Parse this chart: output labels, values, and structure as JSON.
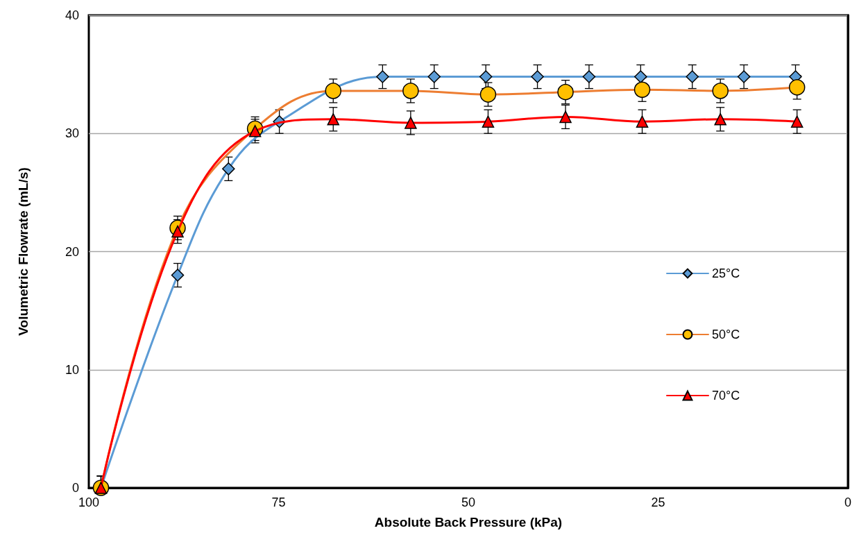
{
  "chart_data": {
    "type": "line",
    "xlabel": "Absolute Back Pressure (kPa)",
    "ylabel": "Volumetric Flowrate (mL/s)",
    "xlim": [
      100,
      0
    ],
    "xticks": [
      100,
      75,
      50,
      25,
      0
    ],
    "ylim": [
      0,
      40
    ],
    "yticks": [
      0,
      10,
      20,
      30,
      40
    ],
    "grid": "y",
    "legend": "right",
    "line_style": "solid",
    "series": [
      {
        "name": "25°C",
        "color": "#5b9bd5",
        "marker": "diamond",
        "x": [
          98.4,
          88.3,
          81.6,
          74.9,
          61.3,
          54.5,
          47.7,
          40.9,
          34.1,
          27.3,
          20.5,
          13.7,
          6.9
        ],
        "values": [
          0,
          18,
          27,
          31,
          34.8,
          34.8,
          34.8,
          34.8,
          34.8,
          34.8,
          34.8,
          34.8,
          34.8
        ],
        "errors": [
          [
            0,
            1
          ],
          1,
          1,
          1,
          1,
          1,
          1,
          1,
          1,
          1,
          1,
          1,
          1
        ]
      },
      {
        "name": "50°C",
        "color": "#ed7d31",
        "marker": "circle",
        "x": [
          98.4,
          88.3,
          78.1,
          67.8,
          57.6,
          47.4,
          37.2,
          27.1,
          16.8,
          6.7
        ],
        "values": [
          0,
          22,
          30.4,
          33.6,
          33.6,
          33.3,
          33.5,
          33.7,
          33.6,
          33.9
        ],
        "errors": [
          [
            0,
            1
          ],
          1,
          1,
          1,
          1,
          1,
          1,
          1,
          1,
          1
        ]
      },
      {
        "name": "70°C",
        "color": "#ff0000",
        "marker": "triangle",
        "x": [
          98.4,
          88.3,
          78.1,
          67.8,
          57.6,
          47.4,
          37.2,
          27.1,
          16.8,
          6.7
        ],
        "values": [
          0,
          21.7,
          30.2,
          31.2,
          30.9,
          31,
          31.4,
          31,
          31.2,
          31
        ],
        "errors": [
          [
            0,
            1
          ],
          1,
          1,
          1,
          1,
          1,
          1,
          1,
          1,
          1
        ]
      }
    ]
  }
}
